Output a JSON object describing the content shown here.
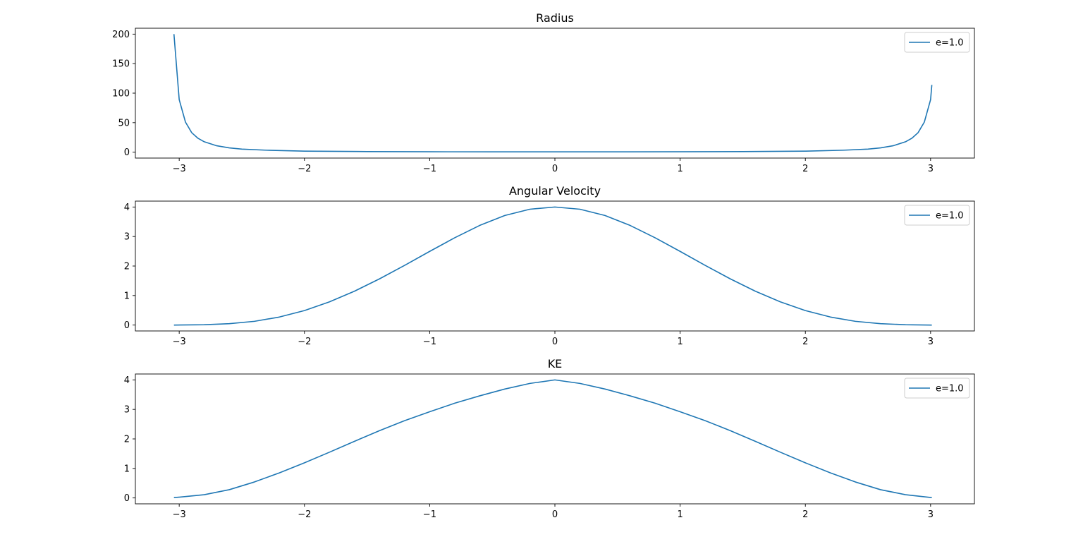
{
  "colors": {
    "series": "#1f77b4",
    "axes": "#000000",
    "background": "#ffffff"
  },
  "chart_data": [
    {
      "type": "line",
      "title": "Radius",
      "xlabel": "",
      "ylabel": "",
      "xlim": [
        -3.35,
        3.35
      ],
      "ylim": [
        -10,
        210
      ],
      "xticks": [
        -3,
        -2,
        -1,
        0,
        1,
        2,
        3
      ],
      "xtick_labels": [
        "−3",
        "−2",
        "−1",
        "0",
        "1",
        "2",
        "3"
      ],
      "yticks": [
        0,
        50,
        100,
        150,
        200
      ],
      "ytick_labels": [
        "0",
        "50",
        "100",
        "150",
        "200"
      ],
      "grid": false,
      "legend": {
        "placement": "top-right",
        "entries": [
          "e=1.0"
        ]
      },
      "series": [
        {
          "name": "e=1.0",
          "x": [
            -3.042,
            -3.0,
            -2.95,
            -2.9,
            -2.85,
            -2.8,
            -2.7,
            -2.6,
            -2.5,
            -2.3,
            -2.0,
            -1.5,
            -1.0,
            -0.5,
            0.0,
            0.5,
            1.0,
            1.5,
            2.0,
            2.3,
            2.5,
            2.6,
            2.7,
            2.8,
            2.85,
            2.9,
            2.95,
            3.0,
            3.01
          ],
          "y": [
            200,
            89,
            51,
            33,
            23.5,
            17.6,
            10.8,
            7.3,
            5.2,
            3.3,
            1.7,
            0.99,
            0.65,
            0.53,
            0.5,
            0.53,
            0.65,
            0.99,
            1.7,
            3.3,
            5.2,
            7.3,
            10.8,
            17.6,
            23.5,
            33,
            51,
            89,
            114
          ]
        }
      ]
    },
    {
      "type": "line",
      "title": "Angular Velocity",
      "xlabel": "",
      "ylabel": "",
      "xlim": [
        -3.35,
        3.35
      ],
      "ylim": [
        -0.2,
        4.2
      ],
      "xticks": [
        -3,
        -2,
        -1,
        0,
        1,
        2,
        3
      ],
      "xtick_labels": [
        "−3",
        "−2",
        "−1",
        "0",
        "1",
        "2",
        "3"
      ],
      "yticks": [
        0,
        1,
        2,
        3,
        4
      ],
      "ytick_labels": [
        "0",
        "1",
        "2",
        "3",
        "4"
      ],
      "grid": false,
      "legend": {
        "placement": "top-right",
        "entries": [
          "e=1.0"
        ]
      },
      "series": [
        {
          "name": "e=1.0",
          "x": [
            -3.042,
            -2.8,
            -2.6,
            -2.4,
            -2.2,
            -2.0,
            -1.8,
            -1.6,
            -1.4,
            -1.2,
            -1.0,
            -0.8,
            -0.6,
            -0.4,
            -0.2,
            0.0,
            0.2,
            0.4,
            0.6,
            0.8,
            1.0,
            1.2,
            1.4,
            1.6,
            1.8,
            2.0,
            2.2,
            2.4,
            2.6,
            2.8,
            3.01
          ],
          "y": [
            0.0,
            0.0116,
            0.0456,
            0.1256,
            0.2716,
            0.4905,
            0.7871,
            1.1488,
            1.5668,
            2.0227,
            2.4962,
            2.958,
            3.377,
            3.7133,
            3.9249,
            4.0,
            3.9249,
            3.7133,
            3.377,
            2.958,
            2.4962,
            2.0227,
            1.5668,
            1.1488,
            0.7871,
            0.4905,
            0.2716,
            0.1256,
            0.0456,
            0.0116,
            0.0
          ]
        }
      ]
    },
    {
      "type": "line",
      "title": "KE",
      "xlabel": "",
      "ylabel": "",
      "xlim": [
        -3.35,
        3.35
      ],
      "ylim": [
        -0.2,
        4.2
      ],
      "xticks": [
        -3,
        -2,
        -1,
        0,
        1,
        2,
        3
      ],
      "xtick_labels": [
        "−3",
        "−2",
        "−1",
        "0",
        "1",
        "2",
        "3"
      ],
      "yticks": [
        0,
        1,
        2,
        3,
        4
      ],
      "ytick_labels": [
        "0",
        "1",
        "2",
        "3",
        "4"
      ],
      "grid": false,
      "legend": {
        "placement": "top-right",
        "entries": [
          "e=1.0"
        ]
      },
      "series": [
        {
          "name": "e=1.0",
          "x": [
            -3.042,
            -2.8,
            -2.6,
            -2.4,
            -2.2,
            -2.0,
            -1.8,
            -1.6,
            -1.4,
            -1.2,
            -1.0,
            -0.8,
            -0.6,
            -0.4,
            -0.2,
            0.0,
            0.2,
            0.4,
            0.6,
            0.8,
            1.0,
            1.2,
            1.4,
            1.6,
            1.8,
            2.0,
            2.2,
            2.4,
            2.6,
            2.8,
            3.01
          ],
          "y": [
            0.01,
            0.11,
            0.28,
            0.54,
            0.85,
            1.19,
            1.55,
            1.92,
            2.28,
            2.62,
            2.92,
            3.21,
            3.46,
            3.69,
            3.88,
            4.0,
            3.88,
            3.69,
            3.46,
            3.21,
            2.92,
            2.62,
            2.28,
            1.92,
            1.55,
            1.19,
            0.85,
            0.54,
            0.28,
            0.11,
            0.01
          ]
        }
      ]
    }
  ]
}
